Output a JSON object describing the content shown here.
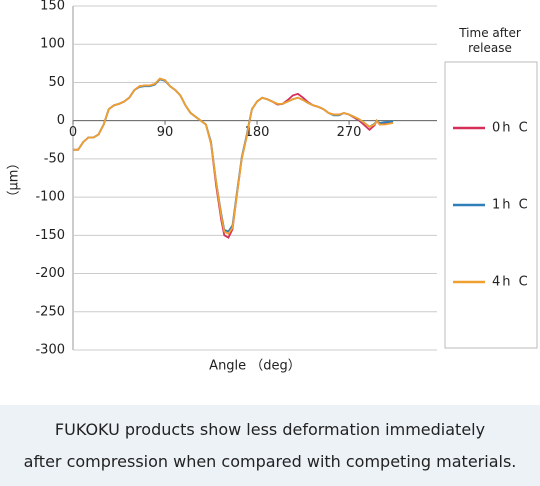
{
  "chart_data": {
    "type": "line",
    "y_label": "（μm）",
    "x_label": "Angle （deg）",
    "legend_title": "Time after release",
    "xlim": [
      0,
      356
    ],
    "xticks": [
      0,
      90,
      180,
      270
    ],
    "ylim": [
      -300,
      150
    ],
    "yticks": [
      -300,
      -250,
      -200,
      -150,
      -100,
      -50,
      0,
      50,
      100,
      150
    ],
    "grid": true,
    "x": [
      0,
      5,
      10,
      15,
      20,
      25,
      30,
      35,
      40,
      45,
      50,
      55,
      60,
      65,
      70,
      75,
      80,
      85,
      90,
      95,
      100,
      105,
      110,
      115,
      120,
      125,
      130,
      135,
      140,
      145,
      148,
      152,
      156,
      160,
      165,
      170,
      172,
      175,
      180,
      185,
      190,
      195,
      200,
      205,
      210,
      215,
      220,
      225,
      230,
      235,
      240,
      245,
      250,
      255,
      260,
      265,
      270,
      275,
      280,
      285,
      290,
      295,
      297,
      300,
      305,
      313
    ],
    "series": [
      {
        "name": "0h C",
        "color": "#d6305a",
        "values": [
          -38,
          -38,
          -28,
          -22,
          -22,
          -18,
          -5,
          15,
          20,
          22,
          25,
          30,
          40,
          45,
          46,
          46,
          48,
          55,
          53,
          45,
          40,
          33,
          20,
          10,
          5,
          0,
          -5,
          -30,
          -85,
          -130,
          -150,
          -153,
          -142,
          -100,
          -50,
          -20,
          -5,
          15,
          25,
          30,
          28,
          25,
          21,
          22,
          27,
          33,
          35,
          30,
          24,
          20,
          18,
          15,
          10,
          8,
          8,
          10,
          8,
          4,
          0,
          -6,
          -12,
          -6,
          0,
          -5,
          -4,
          -2
        ]
      },
      {
        "name": "1h C",
        "color": "#2e7fb8",
        "values": [
          -38,
          -38,
          -28,
          -22,
          -22,
          -18,
          -5,
          15,
          20,
          22,
          25,
          30,
          40,
          44,
          45,
          45,
          47,
          54,
          52,
          45,
          40,
          33,
          20,
          10,
          5,
          0,
          -5,
          -28,
          -80,
          -122,
          -143,
          -145,
          -137,
          -97,
          -48,
          -18,
          -4,
          15,
          25,
          30,
          28,
          25,
          22,
          22,
          25,
          28,
          30,
          27,
          23,
          20,
          18,
          15,
          10,
          7,
          7,
          10,
          8,
          5,
          1,
          -3,
          -8,
          -4,
          0,
          -3,
          -2,
          -1
        ]
      },
      {
        "name": "4h C",
        "color": "#f0a030",
        "values": [
          -38,
          -38,
          -28,
          -22,
          -22,
          -18,
          -5,
          15,
          20,
          22,
          25,
          30,
          40,
          45,
          46,
          46,
          48,
          55,
          53,
          45,
          40,
          33,
          20,
          10,
          5,
          0,
          -5,
          -30,
          -80,
          -125,
          -145,
          -148,
          -140,
          -100,
          -50,
          -20,
          -5,
          15,
          25,
          30,
          28,
          25,
          22,
          22,
          25,
          28,
          30,
          27,
          23,
          20,
          18,
          15,
          10,
          8,
          8,
          10,
          8,
          5,
          2,
          -3,
          -8,
          -5,
          0,
          -5,
          -5,
          -3
        ]
      }
    ]
  },
  "caption": [
    "FUKOKU products show less deformation immediately",
    "after compression when compared with competing materials."
  ]
}
